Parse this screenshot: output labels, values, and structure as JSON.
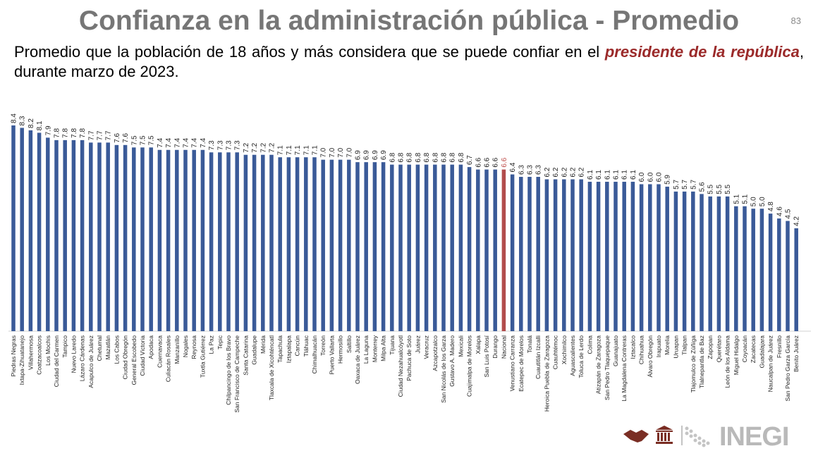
{
  "header": {
    "title": "Confianza en la administración pública - Promedio",
    "page_number": "83"
  },
  "subtitle": {
    "text_before": "Promedio que la población de 18 años y más considera que se puede confiar en el ",
    "highlight": "presidente de la república",
    "text_after": ", durante marzo de 2023."
  },
  "logo": {
    "text": "INEGI"
  },
  "colors": {
    "bar": "#3a5a98",
    "highlight_bar": "#b24c4c",
    "highlight_label": "#c0504d",
    "axis": "#d0d0d0"
  },
  "chart_data": {
    "type": "bar",
    "title": "",
    "xlabel": "",
    "ylabel": "",
    "ylim": [
      0,
      8.4
    ],
    "grid": false,
    "highlight": "Nacional",
    "categories": [
      "Piedras Negras",
      "Ixtapa-Zihuatanejo",
      "Villahermosa",
      "Coatzacoalcos",
      "Los Mochis",
      "Ciudad del Carmen",
      "Tampico",
      "Nuevo Laredo",
      "Lázaro Cárdenas",
      "Acapulco de Juárez",
      "Chetumal",
      "Mazatlán",
      "Los Cabos",
      "Ciudad Obregón",
      "General Escobedo",
      "Ciudad Victoria",
      "Apodaca",
      "Cuernavaca",
      "Culiacán Rosales",
      "Manzanillo",
      "Nogales",
      "Reynosa",
      "Tuxtla Gutiérrez",
      "La Paz",
      "Tepic",
      "Chilpancingo de los Bravo",
      "San Francisco de Campeche",
      "Santa Catarina",
      "Guadalupe",
      "Mérida",
      "Tlaxcala de Xicohténcatl",
      "Tapachula",
      "Iztapalapa",
      "Cancún",
      "Tláhuac",
      "Chimalhuacán",
      "Torreón",
      "Puerto Vallarta",
      "Hermosillo",
      "Saltillo",
      "Oaxaca de Juárez",
      "La Laguna",
      "Monterrey",
      "Milpa Alta",
      "Tijuana",
      "Ciudad Nezahualcóyotl",
      "Pachuca de Soto",
      "Juárez",
      "Veracruz",
      "Azcapotzalco",
      "San Nicolás de los Garza",
      "Gustavo A. Madero",
      "Mexicali",
      "Cuajimalpa de Morelos",
      "Xalapa",
      "San Luis Potosí",
      "Durango",
      "Nacional",
      "Venustiano Carranza",
      "Ecatepec de Morelos",
      "Tonalá",
      "Cuautitlán Izcalli",
      "Heroica Puebla de Zaragoza",
      "Cuauhtémoc",
      "Xochimilco",
      "Aguascalientes",
      "Toluca de Lerdo",
      "Colima",
      "Atizapán de Zaragoza",
      "San Pedro Tlaquepaque",
      "Guanajuato",
      "La Magdalena Contreras",
      "Iztacalco",
      "Chihuahua",
      "Álvaro Obregón",
      "Irapuato",
      "Morelia",
      "Uruapan",
      "Tlalpan",
      "Tlajomulco de Zúñiga",
      "Tlalnepantla de Baz",
      "Zapopan",
      "Querétaro",
      "León de los Aldama",
      "Miguel Hidalgo",
      "Coyoacán",
      "Zacatecas",
      "Guadalajara",
      "Naucalpan de Juárez",
      "Fresnillo",
      "San Pedro Garza García",
      "Benito Juárez"
    ],
    "values": [
      8.4,
      8.3,
      8.2,
      8.1,
      7.9,
      7.8,
      7.8,
      7.8,
      7.8,
      7.7,
      7.7,
      7.7,
      7.6,
      7.6,
      7.5,
      7.5,
      7.5,
      7.4,
      7.4,
      7.4,
      7.4,
      7.4,
      7.4,
      7.3,
      7.3,
      7.3,
      7.3,
      7.2,
      7.2,
      7.2,
      7.2,
      7.1,
      7.1,
      7.1,
      7.1,
      7.1,
      7.0,
      7.0,
      7.0,
      7.0,
      6.9,
      6.9,
      6.9,
      6.9,
      6.8,
      6.8,
      6.8,
      6.8,
      6.8,
      6.8,
      6.8,
      6.8,
      6.8,
      6.7,
      6.6,
      6.6,
      6.6,
      6.6,
      6.4,
      6.3,
      6.3,
      6.3,
      6.2,
      6.2,
      6.2,
      6.2,
      6.2,
      6.1,
      6.1,
      6.1,
      6.1,
      6.1,
      6.1,
      6.0,
      6.0,
      6.0,
      5.9,
      5.7,
      5.7,
      5.7,
      5.6,
      5.5,
      5.5,
      5.5,
      5.1,
      5.1,
      5.0,
      5.0,
      4.8,
      4.6,
      4.5,
      4.2
    ]
  }
}
